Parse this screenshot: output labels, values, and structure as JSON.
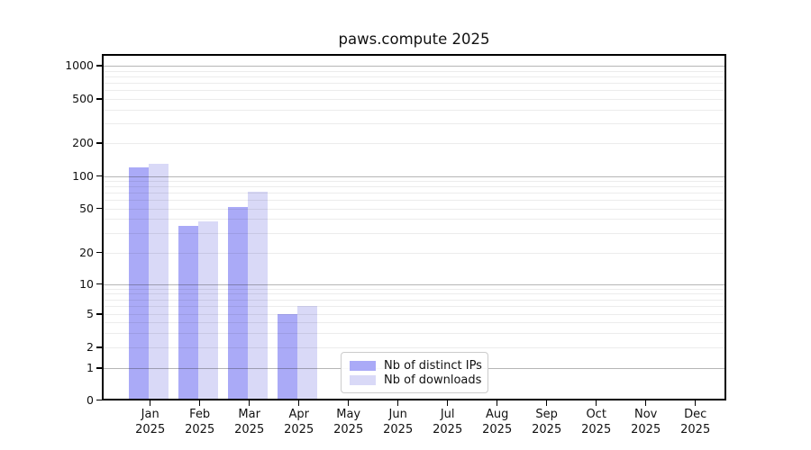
{
  "title": "paws.compute 2025",
  "chart_data": {
    "type": "bar",
    "title": "paws.compute 2025",
    "categories": [
      "Jan 2025",
      "Feb 2025",
      "Mar 2025",
      "Apr 2025",
      "May 2025",
      "Jun 2025",
      "Jul 2025",
      "Aug 2025",
      "Sep 2025",
      "Oct 2025",
      "Nov 2025",
      "Dec 2025"
    ],
    "month_labels": [
      "Jan",
      "Feb",
      "Mar",
      "Apr",
      "May",
      "Jun",
      "Jul",
      "Aug",
      "Sep",
      "Oct",
      "Nov",
      "Dec"
    ],
    "year_label": "2025",
    "series": [
      {
        "name": "Nb of distinct IPs",
        "color": "#aaaaf7",
        "values": [
          120,
          35,
          51,
          5,
          0,
          0,
          0,
          0,
          0,
          0,
          0,
          0
        ]
      },
      {
        "name": "Nb of downloads",
        "color": "#d9d9f7",
        "values": [
          130,
          38,
          71,
          6,
          0,
          0,
          0,
          0,
          0,
          0,
          0,
          0
        ]
      }
    ],
    "xlabel": "",
    "ylabel": "",
    "y_scale": "symlog",
    "y_ticks": [
      0,
      1,
      2,
      5,
      10,
      20,
      50,
      100,
      200,
      500,
      1000
    ],
    "y_major_gridlines": [
      1,
      10,
      100,
      1000
    ],
    "grid": "horizontal",
    "legend_position": "lower center inside plot"
  },
  "legend": {
    "items": [
      {
        "label": "Nb of distinct IPs"
      },
      {
        "label": "Nb of downloads"
      }
    ]
  },
  "colors": {
    "distinct_ips_bar": "#aaaaf7",
    "downloads_bar": "#d9d9f7",
    "axis": "#000000",
    "major_grid": "#b0b0b0",
    "minor_grid": "#ebebeb",
    "background": "#ffffff"
  }
}
